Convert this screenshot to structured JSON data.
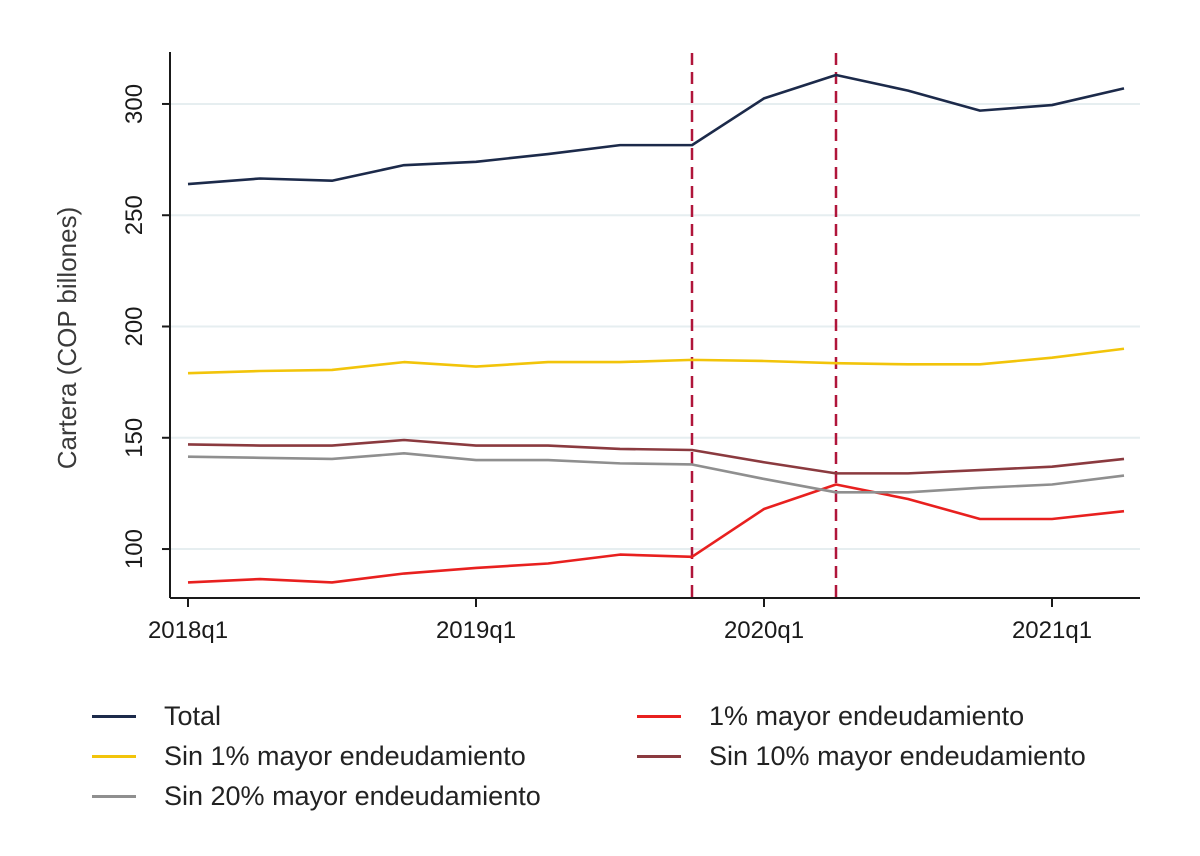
{
  "chart_data": {
    "type": "line",
    "title": "",
    "xlabel": "",
    "ylabel": "Cartera (COP billones)",
    "x": [
      "2018q1",
      "2018q2",
      "2018q3",
      "2018q4",
      "2019q1",
      "2019q2",
      "2019q3",
      "2019q4",
      "2020q1",
      "2020q2",
      "2020q3",
      "2020q4",
      "2021q1",
      "2021q2"
    ],
    "x_tick_labels": [
      "2018q1",
      "2019q1",
      "2020q1",
      "2021q1"
    ],
    "y_ticks": [
      100,
      150,
      200,
      250,
      300
    ],
    "ylim": [
      78,
      322
    ],
    "vertical_lines": [
      {
        "x": "2019q4",
        "style": "dashed",
        "color": "#b0153a"
      },
      {
        "x": "2020q2",
        "style": "dashed",
        "color": "#b0153a"
      }
    ],
    "grid": "horizontal",
    "legend_position": "bottom",
    "series": [
      {
        "name": "Total",
        "color": "#1c2a4a",
        "values": [
          264,
          266.5,
          265.5,
          272.5,
          274,
          277.5,
          281.5,
          281.5,
          302.5,
          313,
          306,
          297,
          299.5,
          307
        ]
      },
      {
        "name": "1% mayor endeudamiento",
        "color": "#e8201f",
        "values": [
          85,
          86.5,
          85,
          89,
          91.5,
          93.5,
          97.5,
          96.5,
          118,
          129,
          122.5,
          113.5,
          113.5,
          117
        ]
      },
      {
        "name": "Sin 1% mayor endeudamiento",
        "color": "#f2c40a",
        "values": [
          179,
          180,
          180.5,
          184,
          182,
          184,
          184,
          185,
          184.5,
          183.5,
          183,
          183,
          186,
          190
        ]
      },
      {
        "name": "Sin 10% mayor endeudamiento",
        "color": "#8b3a3f",
        "values": [
          147,
          146.5,
          146.5,
          149,
          146.5,
          146.5,
          145,
          144.5,
          139,
          134,
          134,
          135.5,
          137,
          140.5
        ]
      },
      {
        "name": "Sin 20% mayor endeudamiento",
        "color": "#8f8f8f",
        "values": [
          141.5,
          141,
          140.5,
          143,
          140,
          140,
          138.5,
          138,
          131.5,
          125.5,
          125.5,
          127.5,
          129,
          133
        ]
      }
    ]
  },
  "legend": {
    "items": [
      {
        "label": "Total",
        "color": "#1c2a4a"
      },
      {
        "label": "1% mayor endeudamiento",
        "color": "#e8201f"
      },
      {
        "label": "Sin 1% mayor endeudamiento",
        "color": "#f2c40a"
      },
      {
        "label": "Sin 10% mayor endeudamiento",
        "color": "#8b3a3f"
      },
      {
        "label": "Sin 20% mayor endeudamiento",
        "color": "#8f8f8f"
      }
    ]
  },
  "colors": {
    "gridline": "#e6eef0",
    "axis": "#1a1a1a",
    "reference_line": "#b0153a"
  }
}
